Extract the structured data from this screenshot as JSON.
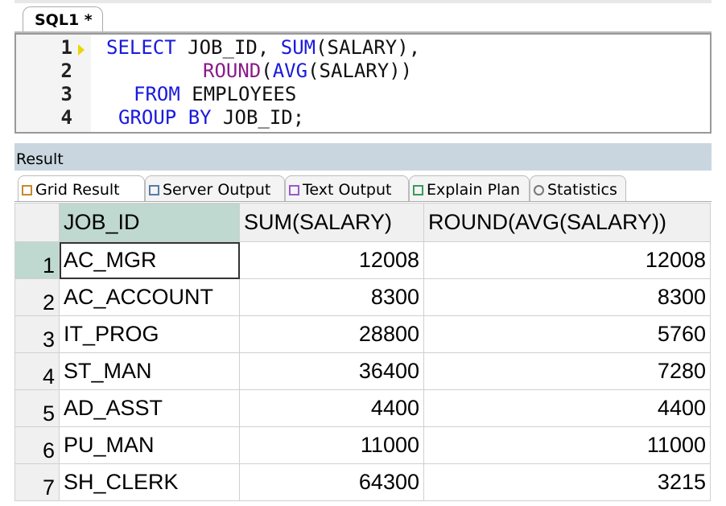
{
  "editor_tab": {
    "label": "SQL1 *"
  },
  "editor": {
    "line_numbers": [
      "1",
      "2",
      "3",
      "4"
    ]
  },
  "sql": {
    "l1a": "SELECT",
    "l1b": " JOB_ID, ",
    "l1c": "SUM",
    "l1d": "(SALARY),",
    "l2a": "ROUND",
    "l2b": "(",
    "l2c": "AVG",
    "l2d": "(SALARY))",
    "l3a": "FROM",
    "l3b": " EMPLOYEES",
    "l4a": "GROUP BY",
    "l4b": " JOB_ID;"
  },
  "result": {
    "title": "Result",
    "tabs": [
      {
        "label": "Grid Result",
        "icon": "grid-icon"
      },
      {
        "label": "Server Output",
        "icon": "server-icon"
      },
      {
        "label": "Text Output",
        "icon": "text-icon"
      },
      {
        "label": "Explain Plan",
        "icon": "plan-icon"
      },
      {
        "label": "Statistics",
        "icon": "statistics-icon"
      }
    ]
  },
  "grid": {
    "columns": [
      "JOB_ID",
      "SUM(SALARY)",
      "ROUND(AVG(SALARY))"
    ],
    "rows": [
      [
        "1",
        "AC_MGR",
        "12008",
        "12008"
      ],
      [
        "2",
        "AC_ACCOUNT",
        "8300",
        "8300"
      ],
      [
        "3",
        "IT_PROG",
        "28800",
        "5760"
      ],
      [
        "4",
        "ST_MAN",
        "36400",
        "7280"
      ],
      [
        "5",
        "AD_ASST",
        "4400",
        "4400"
      ],
      [
        "6",
        "PU_MAN",
        "11000",
        "11000"
      ],
      [
        "7",
        "SH_CLERK",
        "64300",
        "3215"
      ]
    ]
  },
  "colors": {
    "keyword": "#1a1adc",
    "function": "#8a1a8a",
    "selection": "#bfd8d0",
    "result_bar": "#c9d6e0"
  }
}
